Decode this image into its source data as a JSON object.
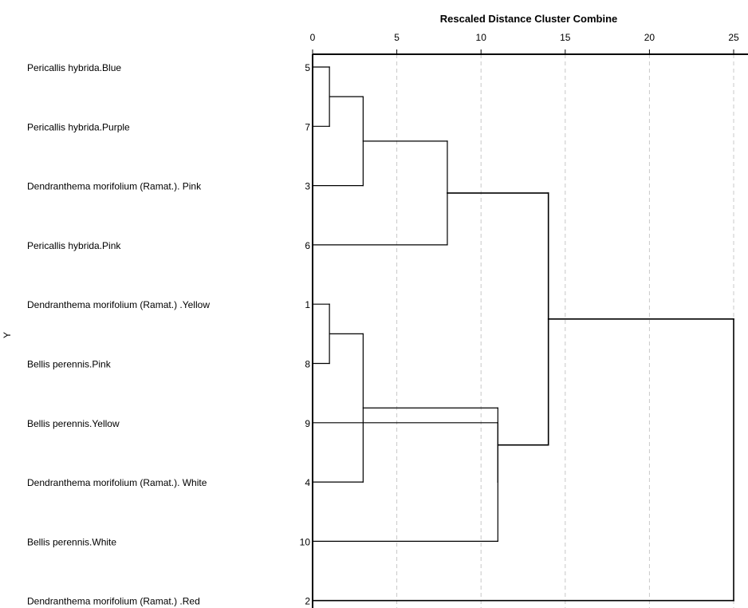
{
  "chart_data": {
    "type": "dendrogram",
    "title": "Rescaled Distance Cluster Combine",
    "ylabel": "Y",
    "xlim": [
      0,
      25
    ],
    "xticks": [
      0,
      5,
      10,
      15,
      20,
      25
    ],
    "grid": true,
    "leaves": [
      {
        "label": "Pericallis hybrida.Blue",
        "case": "5"
      },
      {
        "label": "Pericallis hybrida.Purple",
        "case": "7"
      },
      {
        "label": "Dendranthema morifolium (Ramat.). Pink",
        "case": "3"
      },
      {
        "label": "Pericallis hybrida.Pink",
        "case": "6"
      },
      {
        "label": "Dendranthema morifolium (Ramat.) .Yellow",
        "case": "1"
      },
      {
        "label": "Bellis perennis.Pink",
        "case": "8"
      },
      {
        "label": "Bellis perennis.Yellow",
        "case": "9"
      },
      {
        "label": "Dendranthema morifolium (Ramat.). White",
        "case": "4"
      },
      {
        "label": "Bellis perennis.White",
        "case": "10"
      },
      {
        "label": "Dendranthema morifolium (Ramat.) .Red",
        "case": "2"
      }
    ],
    "merges": [
      {
        "id": "c1",
        "left": 0,
        "right": 1,
        "height": 1
      },
      {
        "id": "c2",
        "left": "c1",
        "right": 2,
        "height": 3
      },
      {
        "id": "c3",
        "left": "c2",
        "right": 3,
        "height": 8
      },
      {
        "id": "c4",
        "left": 4,
        "right": 5,
        "height": 1
      },
      {
        "id": "c5",
        "left": "c4",
        "right": 7,
        "height": 3
      },
      {
        "id": "c6",
        "left": 6,
        "right": 8,
        "height": 11
      },
      {
        "id": "c7",
        "left": "c5",
        "right": "c6",
        "height": 11
      },
      {
        "id": "c8",
        "left": "c3",
        "right": "c7",
        "height": 14
      },
      {
        "id": "c9",
        "left": "c8",
        "right": 9,
        "height": 25
      }
    ],
    "colors": {
      "line": "#000000",
      "grid": "#c8c8c8",
      "leaf_stub": "#808080"
    }
  }
}
